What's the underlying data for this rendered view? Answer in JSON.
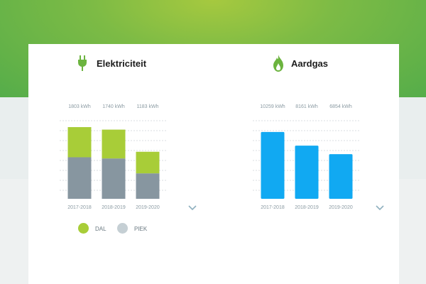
{
  "colors": {
    "dal": "#a8cd38",
    "piek": "#8796a0",
    "gas": "#11a9f2",
    "label_text": "#8a9aa2",
    "chevron": "#8fb0bf",
    "gridline": "#d9dee0"
  },
  "icons": {
    "electricity": "plug-icon",
    "gas": "flame-icon",
    "chevron_left": "chevron-down-icon",
    "chevron_right": "chevron-down-icon"
  },
  "electricity": {
    "title": "Elektriciteit",
    "legend": [
      {
        "label": "DAL",
        "color": "#a8cd38"
      },
      {
        "label": "PIEK",
        "color": "#c5cfd4"
      }
    ]
  },
  "gas": {
    "title": "Aardgas"
  },
  "chart_data": [
    {
      "type": "bar",
      "stacked": true,
      "categories": [
        "2017-2018",
        "2018-2019",
        "2019-2020"
      ],
      "totals_labels": [
        "1803 kWh",
        "1740 kWh",
        "1183 kWh"
      ],
      "totals": [
        1803,
        1740,
        1183
      ],
      "series": [
        {
          "name": "PIEK",
          "values": [
            1045,
            1015,
            640
          ]
        },
        {
          "name": "DAL",
          "values": [
            758,
            725,
            543
          ]
        }
      ],
      "ylim": [
        0,
        2000
      ],
      "grid": true,
      "legend_position": "bottom"
    },
    {
      "type": "bar",
      "categories": [
        "2017-2018",
        "2018-2019",
        "2019-2020"
      ],
      "value_labels": [
        "10259 kWh",
        "8161 kWh",
        "6854 kWh"
      ],
      "values": [
        10259,
        8161,
        6854
      ],
      "ylim": [
        0,
        12200
      ],
      "grid": true
    }
  ]
}
